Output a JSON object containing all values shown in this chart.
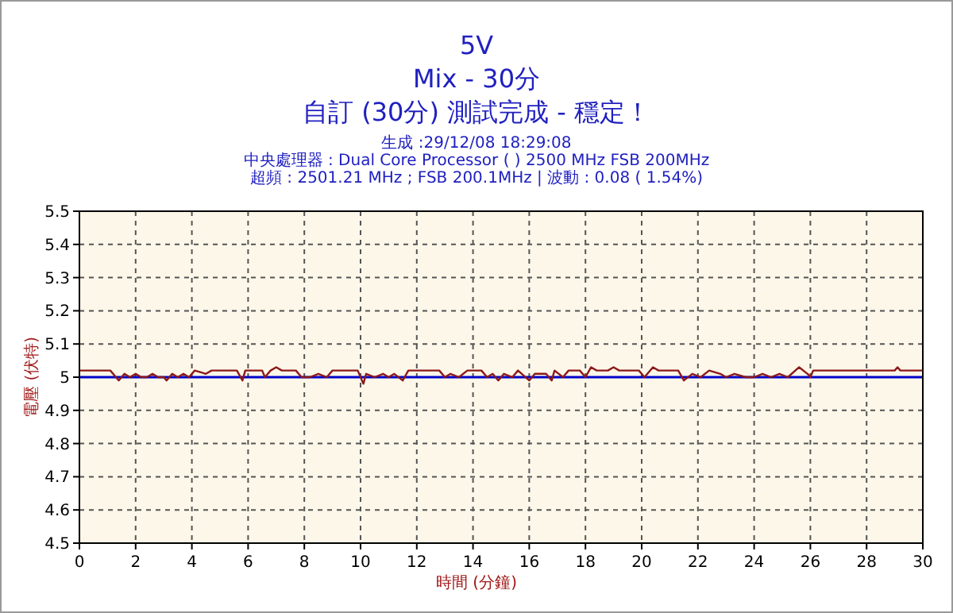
{
  "chart_data": {
    "type": "line",
    "title": "5V",
    "subtitle": "Mix - 30分",
    "annotations": [
      "自訂 (30分) 測試完成 - 穩定！",
      "生成 :29/12/08 18:29:08",
      "中央處理器 : Dual Core Processor (  ) 2500 MHz FSB 200MHz",
      "超頻 : 2501.21 MHz ; FSB 200.1MHz | 波動 : 0.08 ( 1.54%)"
    ],
    "xlabel": "時間 (分鐘)",
    "ylabel": "電壓 (伏特)",
    "x": [
      0,
      1.1,
      1.3,
      1.4,
      1.6,
      1.8,
      2.0,
      2.2,
      2.4,
      2.6,
      2.8,
      3.0,
      3.1,
      3.3,
      3.5,
      3.7,
      3.9,
      4.1,
      4.5,
      4.7,
      5.6,
      5.8,
      5.9,
      6.5,
      6.6,
      6.8,
      7.0,
      7.2,
      7.7,
      7.9,
      8.2,
      8.5,
      8.8,
      9.0,
      9.9,
      10.1,
      10.2,
      10.5,
      10.8,
      11.0,
      11.2,
      11.5,
      11.7,
      12.8,
      13.0,
      13.2,
      13.5,
      13.8,
      14.3,
      14.5,
      14.7,
      14.9,
      15.1,
      15.4,
      15.6,
      16.0,
      16.2,
      16.6,
      16.8,
      16.9,
      17.2,
      17.4,
      17.8,
      18.0,
      18.2,
      18.4,
      18.8,
      19.0,
      19.2,
      19.9,
      20.1,
      20.4,
      20.6,
      21.3,
      21.5,
      21.8,
      22.1,
      22.4,
      22.8,
      23.0,
      23.3,
      23.7,
      24.0,
      24.3,
      24.6,
      24.9,
      25.2,
      25.6,
      25.9,
      26.0,
      26.1,
      29.0,
      29.1,
      29.2,
      30
    ],
    "series": [
      {
        "color": "#8b1a1a",
        "values": [
          5.02,
          5.02,
          5.0,
          4.99,
          5.01,
          5.0,
          5.01,
          5.0,
          5.0,
          5.01,
          5.0,
          5.0,
          4.99,
          5.01,
          5.0,
          5.01,
          5.0,
          5.02,
          5.01,
          5.02,
          5.02,
          4.99,
          5.02,
          5.02,
          5.0,
          5.02,
          5.03,
          5.02,
          5.02,
          5.0,
          5.0,
          5.01,
          5.0,
          5.02,
          5.02,
          4.98,
          5.01,
          5.0,
          5.01,
          5.0,
          5.01,
          4.99,
          5.02,
          5.02,
          5.0,
          5.01,
          5.0,
          5.02,
          5.02,
          5.0,
          5.01,
          4.99,
          5.01,
          5.0,
          5.02,
          4.99,
          5.01,
          5.01,
          4.99,
          5.02,
          5.0,
          5.02,
          5.02,
          5.0,
          5.03,
          5.02,
          5.02,
          5.03,
          5.02,
          5.02,
          5.0,
          5.03,
          5.02,
          5.02,
          4.99,
          5.01,
          5.0,
          5.02,
          5.01,
          5.0,
          5.01,
          5.0,
          5.0,
          5.01,
          5.0,
          5.01,
          5.0,
          5.03,
          5.01,
          5.0,
          5.02,
          5.02,
          5.03,
          5.02,
          5.02
        ]
      }
    ],
    "ref_lines": [
      {
        "axis": "y",
        "value": 5,
        "color": "#0000cc"
      }
    ],
    "xlim": [
      0,
      30
    ],
    "ylim": [
      4.5,
      5.5
    ],
    "xticks": [
      0,
      2,
      4,
      6,
      8,
      10,
      12,
      14,
      16,
      18,
      20,
      22,
      24,
      26,
      28,
      30
    ],
    "yticks": [
      4.5,
      4.6,
      4.7,
      4.8,
      4.9,
      5,
      5.1,
      5.2,
      5.3,
      5.4,
      5.5
    ],
    "grid": true
  }
}
